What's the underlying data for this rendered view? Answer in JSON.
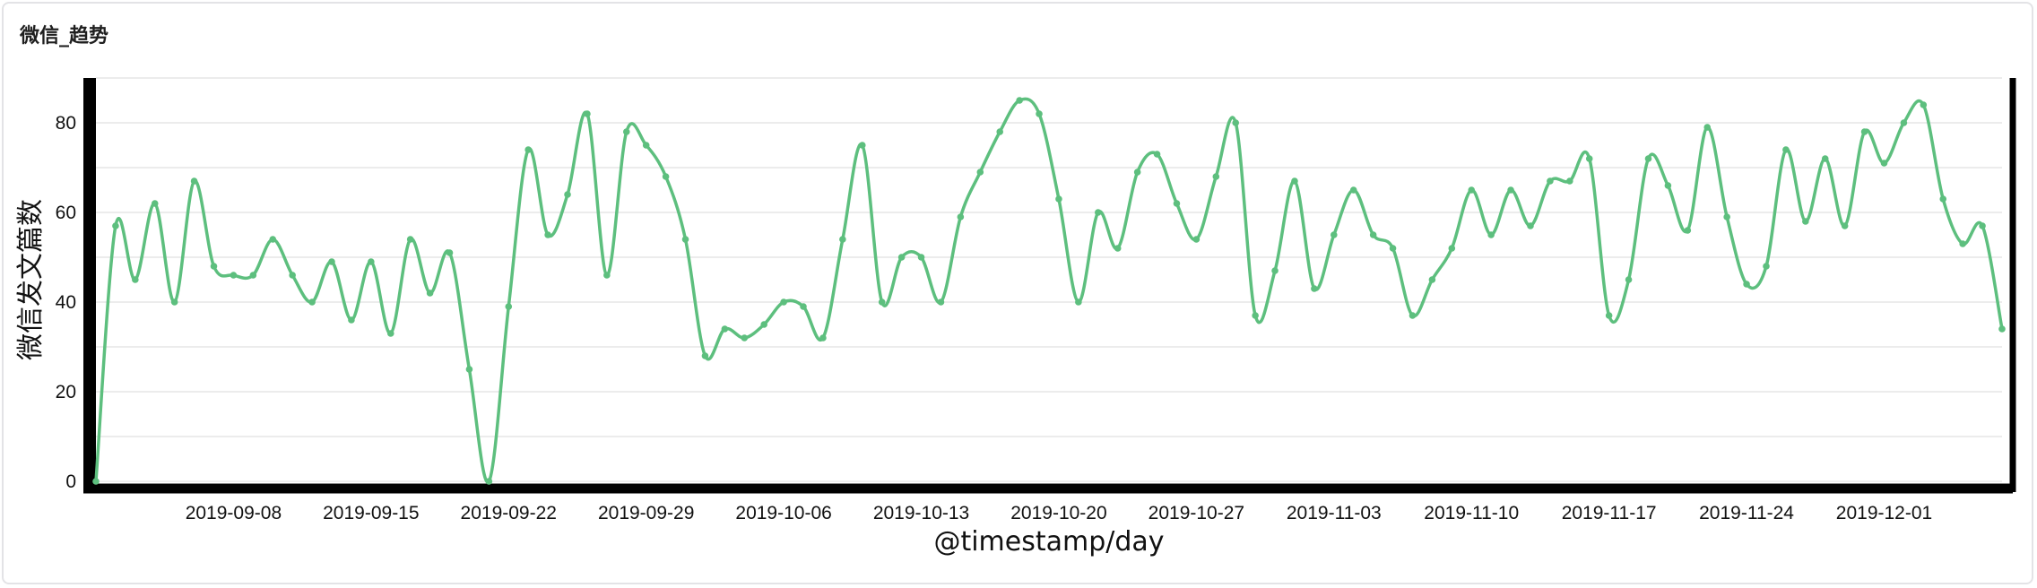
{
  "panel": {
    "title": "微信_趋势"
  },
  "colors": {
    "series": "#5dbf7e",
    "axis": "#000000",
    "grid": "#e6e6e6"
  },
  "chart_data": {
    "type": "line",
    "title": "微信_趋势",
    "xlabel": "@timestamp/day",
    "ylabel": "微信发文篇数",
    "ylim": [
      0,
      90
    ],
    "yticks": [
      0,
      20,
      40,
      60,
      80
    ],
    "grid": true,
    "x_start": "2019-09-01",
    "x_ticks": [
      "2019-09-08",
      "2019-09-15",
      "2019-09-22",
      "2019-09-29",
      "2019-10-06",
      "2019-10-13",
      "2019-10-20",
      "2019-10-27",
      "2019-11-03",
      "2019-11-10",
      "2019-11-17",
      "2019-11-24",
      "2019-12-01"
    ],
    "series": [
      {
        "values": [
          0,
          57,
          45,
          62,
          40,
          67,
          48,
          46,
          46,
          54,
          46,
          40,
          49,
          36,
          49,
          33,
          54,
          42,
          51,
          25,
          0,
          39,
          74,
          55,
          64,
          82,
          46,
          78,
          75,
          68,
          54,
          28,
          34,
          32,
          35,
          40,
          39,
          32,
          54,
          75,
          40,
          50,
          50,
          40,
          59,
          69,
          78,
          85,
          82,
          63,
          40,
          60,
          52,
          69,
          73,
          62,
          54,
          68,
          80,
          37,
          47,
          67,
          43,
          55,
          65,
          55,
          52,
          37,
          45,
          52,
          65,
          55,
          65,
          57,
          67,
          67,
          72,
          37,
          45,
          72,
          66,
          56,
          79,
          59,
          44,
          48,
          74,
          58,
          72,
          57,
          78,
          71,
          80,
          84,
          63,
          53,
          57,
          34
        ]
      }
    ]
  }
}
